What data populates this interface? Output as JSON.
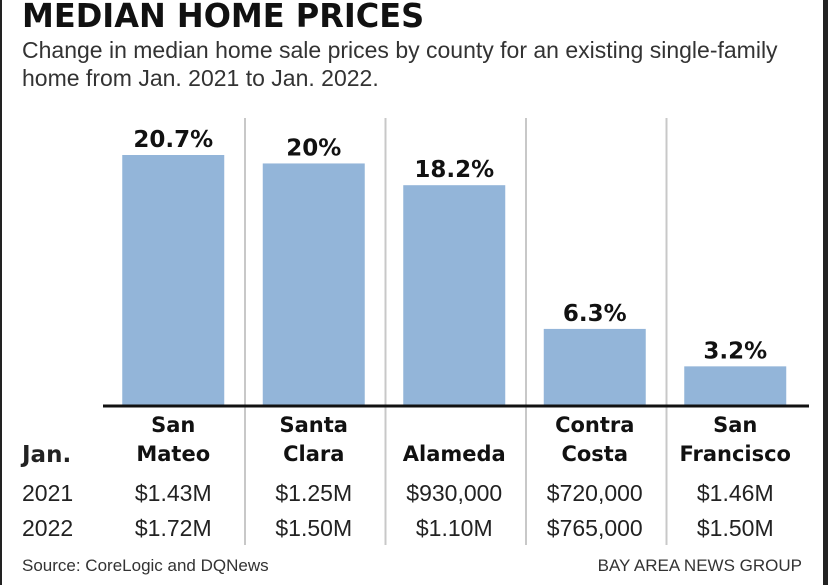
{
  "chart_data": {
    "type": "bar",
    "title": "MEDIAN HOME PRICES",
    "subtitle": "Change in median home sale prices by county for an existing single-family home from Jan. 2021 to Jan. 2022.",
    "xlabel": "",
    "ylabel": "",
    "categories": [
      "San Mateo",
      "Santa Clara",
      "Alameda",
      "Contra Costa",
      "San Francisco"
    ],
    "category_lines": [
      [
        "San",
        "Mateo"
      ],
      [
        "Santa",
        "Clara"
      ],
      [
        "",
        "Alameda"
      ],
      [
        "Contra",
        "Costa"
      ],
      [
        "San",
        "Francisco"
      ]
    ],
    "values": [
      20.7,
      20,
      18.2,
      6.3,
      3.2
    ],
    "value_labels": [
      "20.7%",
      "20%",
      "18.2%",
      "6.3%",
      "3.2%"
    ],
    "ylim": [
      0,
      22
    ],
    "grid": false,
    "bar_color": "#93b5d9",
    "table": {
      "header_label": "Jan.",
      "rows": [
        {
          "year": "2021",
          "values": [
            "$1.43M",
            "$1.25M",
            "$930,000",
            "$720,000",
            "$1.46M"
          ]
        },
        {
          "year": "2022",
          "values": [
            "$1.72M",
            "$1.50M",
            "$1.10M",
            "$765,000",
            "$1.50M"
          ]
        }
      ]
    },
    "source": "Source: CoreLogic and DQNews",
    "credit": "BAY AREA NEWS GROUP"
  }
}
